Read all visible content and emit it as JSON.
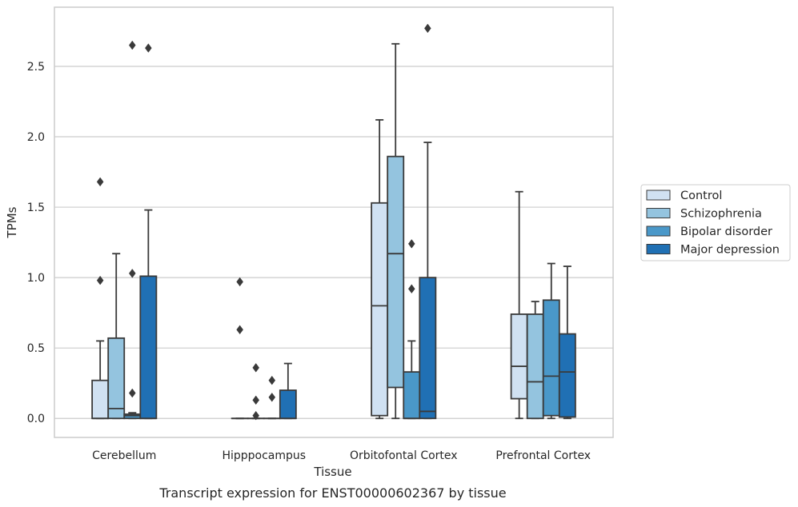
{
  "caption": "Transcript expression for ENST00000602367 by tissue",
  "chart_data": {
    "type": "box",
    "xlabel": "Tissue",
    "ylabel": "TPMs",
    "ylim": [
      -0.135,
      2.92
    ],
    "yticks": [
      0.0,
      0.5,
      1.0,
      1.5,
      2.0,
      2.5
    ],
    "ytick_labels": [
      "0.0",
      "0.5",
      "1.0",
      "1.5",
      "2.0",
      "2.5"
    ],
    "grid": "horizontal",
    "legend_position": "right",
    "categories": [
      "Cerebellum",
      "Hipppocampus",
      "Orbitofontal Cortex",
      "Prefrontal Cortex"
    ],
    "series": [
      {
        "name": "Control",
        "color": "#d0e1f2",
        "boxes": [
          {
            "q1": 0.0,
            "median": 0.0,
            "q3": 0.27,
            "whisker_low": 0.0,
            "whisker_high": 0.55,
            "outliers": [
              0.98,
              1.68
            ]
          },
          {
            "q1": 0.0,
            "median": 0.0,
            "q3": 0.0,
            "whisker_low": 0.0,
            "whisker_high": 0.0,
            "outliers": [
              0.63,
              0.97
            ]
          },
          {
            "q1": 0.02,
            "median": 0.8,
            "q3": 1.53,
            "whisker_low": 0.0,
            "whisker_high": 2.12,
            "outliers": []
          },
          {
            "q1": 0.14,
            "median": 0.37,
            "q3": 0.74,
            "whisker_low": 0.0,
            "whisker_high": 1.61,
            "outliers": []
          }
        ]
      },
      {
        "name": "Schizophrenia",
        "color": "#94c4df",
        "boxes": [
          {
            "q1": 0.0,
            "median": 0.07,
            "q3": 0.57,
            "whisker_low": 0.0,
            "whisker_high": 1.17,
            "outliers": []
          },
          {
            "q1": 0.0,
            "median": 0.0,
            "q3": 0.0,
            "whisker_low": 0.0,
            "whisker_high": 0.0,
            "outliers": [
              0.02,
              0.13,
              0.36
            ]
          },
          {
            "q1": 0.22,
            "median": 1.17,
            "q3": 1.86,
            "whisker_low": 0.0,
            "whisker_high": 2.66,
            "outliers": []
          },
          {
            "q1": 0.0,
            "median": 0.26,
            "q3": 0.74,
            "whisker_low": 0.0,
            "whisker_high": 0.83,
            "outliers": []
          }
        ]
      },
      {
        "name": "Bipolar disorder",
        "color": "#4a98c9",
        "boxes": [
          {
            "q1": 0.0,
            "median": 0.02,
            "q3": 0.03,
            "whisker_low": 0.0,
            "whisker_high": 0.04,
            "outliers": [
              0.18,
              1.03,
              2.65
            ]
          },
          {
            "q1": 0.0,
            "median": 0.0,
            "q3": 0.0,
            "whisker_low": 0.0,
            "whisker_high": 0.0,
            "outliers": [
              0.15,
              0.27
            ]
          },
          {
            "q1": 0.0,
            "median": 0.0,
            "q3": 0.33,
            "whisker_low": 0.0,
            "whisker_high": 0.55,
            "outliers": [
              0.92,
              1.24
            ]
          },
          {
            "q1": 0.02,
            "median": 0.3,
            "q3": 0.84,
            "whisker_low": 0.0,
            "whisker_high": 1.1,
            "outliers": []
          }
        ]
      },
      {
        "name": "Major depression",
        "color": "#2070b4",
        "boxes": [
          {
            "q1": 0.0,
            "median": 0.0,
            "q3": 1.01,
            "whisker_low": 0.0,
            "whisker_high": 1.48,
            "outliers": [
              2.63
            ]
          },
          {
            "q1": 0.0,
            "median": 0.0,
            "q3": 0.2,
            "whisker_low": 0.0,
            "whisker_high": 0.39,
            "outliers": []
          },
          {
            "q1": 0.0,
            "median": 0.05,
            "q3": 1.0,
            "whisker_low": 0.0,
            "whisker_high": 1.96,
            "outliers": [
              2.77
            ]
          },
          {
            "q1": 0.01,
            "median": 0.33,
            "q3": 0.6,
            "whisker_low": 0.0,
            "whisker_high": 1.08,
            "outliers": []
          }
        ]
      }
    ]
  }
}
